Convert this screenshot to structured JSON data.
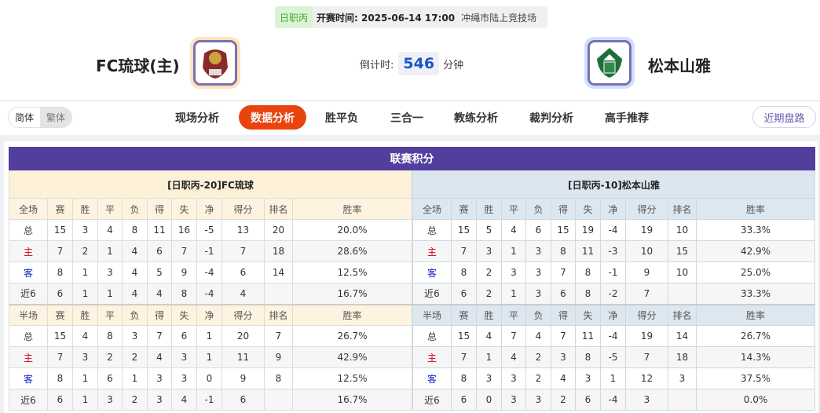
{
  "match": {
    "league": "日职丙",
    "time_label": "开赛时间: 2025-06-14 17:00",
    "venue": "冲绳市陆上竞技场"
  },
  "home": {
    "name": "FC琉球(主)"
  },
  "away": {
    "name": "松本山雅"
  },
  "countdown": {
    "label": "倒计时:",
    "value": "546",
    "unit": "分钟"
  },
  "lang": {
    "simplified": "简体",
    "traditional": "繁体"
  },
  "tabs": [
    "现场分析",
    "数据分析",
    "胜平负",
    "三合一",
    "教练分析",
    "裁判分析",
    "高手推荐"
  ],
  "active_tab": "数据分析",
  "recent_button": "近期盘路",
  "standings": {
    "title": "联赛积分",
    "full_cols": [
      "全场",
      "赛",
      "胜",
      "平",
      "负",
      "得",
      "失",
      "净",
      "得分",
      "排名",
      "胜率"
    ],
    "half_cols": [
      "半场",
      "赛",
      "胜",
      "平",
      "负",
      "得",
      "失",
      "净",
      "得分",
      "排名",
      "胜率"
    ],
    "home": {
      "header": "[日职丙-20]FC琉球",
      "full": [
        [
          "总",
          "15",
          "3",
          "4",
          "8",
          "11",
          "16",
          "-5",
          "13",
          "20",
          "20.0%"
        ],
        [
          "主",
          "7",
          "2",
          "1",
          "4",
          "6",
          "7",
          "-1",
          "7",
          "18",
          "28.6%"
        ],
        [
          "客",
          "8",
          "1",
          "3",
          "4",
          "5",
          "9",
          "-4",
          "6",
          "14",
          "12.5%"
        ],
        [
          "近6",
          "6",
          "1",
          "1",
          "4",
          "4",
          "8",
          "-4",
          "4",
          "",
          "16.7%"
        ]
      ],
      "half": [
        [
          "总",
          "15",
          "4",
          "8",
          "3",
          "7",
          "6",
          "1",
          "20",
          "7",
          "26.7%"
        ],
        [
          "主",
          "7",
          "3",
          "2",
          "2",
          "4",
          "3",
          "1",
          "11",
          "9",
          "42.9%"
        ],
        [
          "客",
          "8",
          "1",
          "6",
          "1",
          "3",
          "3",
          "0",
          "9",
          "8",
          "12.5%"
        ],
        [
          "近6",
          "6",
          "1",
          "3",
          "2",
          "3",
          "4",
          "-1",
          "6",
          "",
          "16.7%"
        ]
      ]
    },
    "away": {
      "header": "[日职丙-10]松本山雅",
      "full": [
        [
          "总",
          "15",
          "5",
          "4",
          "6",
          "15",
          "19",
          "-4",
          "19",
          "10",
          "33.3%"
        ],
        [
          "主",
          "7",
          "3",
          "1",
          "3",
          "8",
          "11",
          "-3",
          "10",
          "15",
          "42.9%"
        ],
        [
          "客",
          "8",
          "2",
          "3",
          "3",
          "7",
          "8",
          "-1",
          "9",
          "10",
          "25.0%"
        ],
        [
          "近6",
          "6",
          "2",
          "1",
          "3",
          "6",
          "8",
          "-2",
          "7",
          "",
          "33.3%"
        ]
      ],
      "half": [
        [
          "总",
          "15",
          "4",
          "7",
          "4",
          "7",
          "11",
          "-4",
          "19",
          "14",
          "26.7%"
        ],
        [
          "主",
          "7",
          "1",
          "4",
          "2",
          "3",
          "8",
          "-5",
          "7",
          "18",
          "14.3%"
        ],
        [
          "客",
          "8",
          "3",
          "3",
          "2",
          "4",
          "3",
          "1",
          "12",
          "3",
          "37.5%"
        ],
        [
          "近6",
          "6",
          "0",
          "3",
          "3",
          "2",
          "6",
          "-4",
          "3",
          "",
          "0.0%"
        ]
      ]
    }
  }
}
